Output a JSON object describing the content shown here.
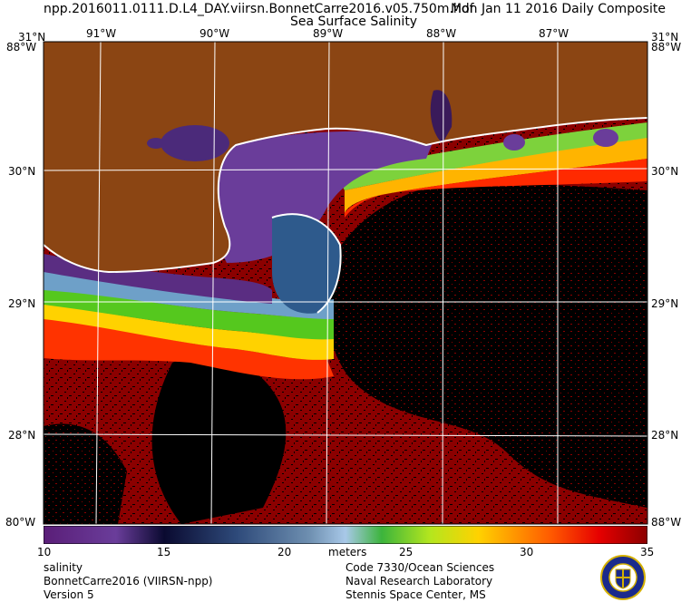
{
  "header": {
    "filename": "npp.2016011.0111.D.L4_DAY.viirsn.BonnetCarre2016.v05.750m.hdf",
    "date": "Mon Jan 11 2016 Daily Composite",
    "product": "Sea Surface Salinity"
  },
  "map": {
    "lon_labels": [
      "91°W",
      "90°W",
      "89°W",
      "88°W",
      "87°W"
    ],
    "lat_labels": [
      "30°N",
      "29°N",
      "28°N"
    ],
    "corner_top_left": "31°N",
    "corner_top_right": "31°N",
    "corner_left_88": "88°W",
    "corner_right_88": "88°W",
    "corner_bottom_left": "80°W",
    "corner_bottom_right": "88°W",
    "colors": {
      "land": "#8b4513",
      "high_salinity_water": "#8b0000",
      "no_data": "#000000",
      "coastline": "#ffffff",
      "grid": "#ffffff"
    }
  },
  "colorbar": {
    "tick_labels": [
      "10",
      "15",
      "20",
      "25",
      "30",
      "35"
    ],
    "units": "meters",
    "range": [
      10,
      35
    ]
  },
  "footer": {
    "left": [
      "salinity",
      "BonnetCarre2016 (VIIRSN-npp)",
      "Version 5"
    ],
    "center": [
      "Code 7330/Ocean Sciences",
      "Naval Research Laboratory",
      "Stennis Space Center, MS"
    ]
  },
  "logo": {
    "name": "nrl-seal-icon"
  }
}
